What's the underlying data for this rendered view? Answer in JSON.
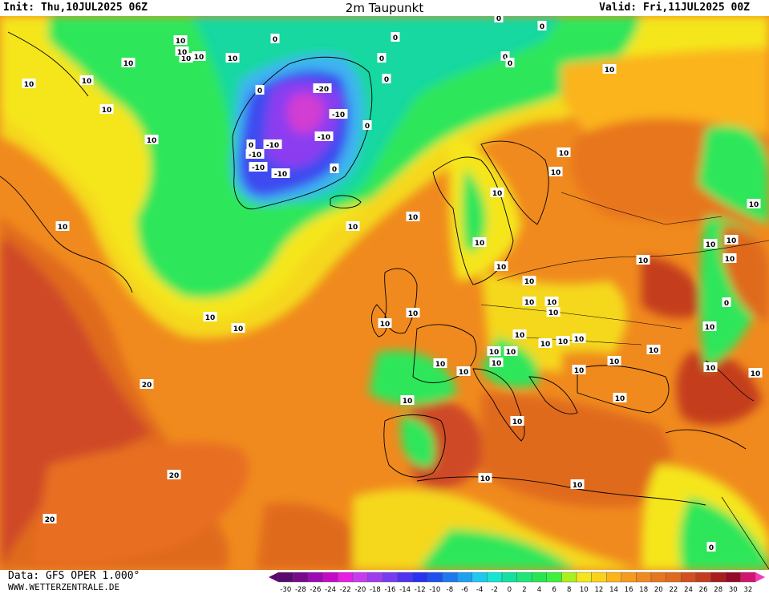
{
  "header": {
    "init": "Init: Thu,10JUL2025 06Z",
    "title": "2m Taupunkt",
    "valid": "Valid: Fri,11JUL2025 00Z"
  },
  "footer": {
    "data_source": "Data: GFS OPER 1.000°",
    "website": "WWW.WETTERZENTRALE.DE"
  },
  "colors": {
    "ocean_orange": "#f08a1e",
    "deep_orange": "#e06a1e",
    "red_orange": "#cf4a26",
    "yellow": "#f5e61a",
    "gold": "#fbc21a",
    "green": "#2ee65a",
    "bright_green": "#3cf03c",
    "teal": "#14e0a0",
    "blue": "#3c4cf0",
    "purple": "#8c3cf0",
    "magenta": "#d23cd2",
    "coast": "#000000"
  },
  "legend": {
    "labels": [
      "-30",
      "-28",
      "-26",
      "-24",
      "-22",
      "-20",
      "-18",
      "-16",
      "-14",
      "-12",
      "-10",
      "-8",
      "-6",
      "-4",
      "-2",
      "0",
      "2",
      "4",
      "6",
      "8",
      "10",
      "12",
      "14",
      "16",
      "18",
      "20",
      "22",
      "24",
      "26",
      "28",
      "30",
      "32"
    ],
    "colors": [
      "#5a0a6e",
      "#780a8c",
      "#9b0ab4",
      "#c40ac8",
      "#e61ee6",
      "#c83cf0",
      "#a03cf0",
      "#783cf0",
      "#5032f0",
      "#2832f0",
      "#1e50f0",
      "#1e78f0",
      "#1ea0f0",
      "#1ec8f0",
      "#14e6d2",
      "#14e0a0",
      "#1ee678",
      "#28e650",
      "#3cf03c",
      "#aaf01e",
      "#f5e61a",
      "#fbd21a",
      "#fbb41a",
      "#f79a1e",
      "#f08a1e",
      "#e8761e",
      "#e06a1e",
      "#d2501e",
      "#c43c1e",
      "#aa1e1e",
      "#960a28",
      "#d2146e"
    ]
  },
  "contour_labels": [
    {
      "text": "10"
    },
    {
      "text": "10"
    },
    {
      "text": "10"
    },
    {
      "text": "10"
    },
    {
      "text": "0"
    },
    {
      "text": "10"
    },
    {
      "text": "0"
    },
    {
      "text": "0"
    },
    {
      "text": "0"
    },
    {
      "text": "0"
    },
    {
      "text": "10"
    },
    {
      "text": "0"
    },
    {
      "text": "0"
    },
    {
      "text": "0"
    },
    {
      "text": "10"
    },
    {
      "text": "10"
    },
    {
      "text": "10"
    },
    {
      "text": "10"
    },
    {
      "text": "10"
    },
    {
      "text": "0"
    },
    {
      "text": "-20"
    },
    {
      "text": "-10"
    },
    {
      "text": "-10"
    },
    {
      "text": "-10"
    },
    {
      "text": "-10"
    },
    {
      "text": "-10"
    },
    {
      "text": "-10"
    },
    {
      "text": "0"
    },
    {
      "text": "0"
    },
    {
      "text": "0"
    },
    {
      "text": "10"
    },
    {
      "text": "10"
    },
    {
      "text": "10"
    },
    {
      "text": "10"
    },
    {
      "text": "10"
    },
    {
      "text": "10"
    },
    {
      "text": "10"
    },
    {
      "text": "10"
    },
    {
      "text": "10"
    },
    {
      "text": "10"
    },
    {
      "text": "10"
    },
    {
      "text": "10"
    },
    {
      "text": "10"
    },
    {
      "text": "10"
    },
    {
      "text": "10"
    },
    {
      "text": "10"
    },
    {
      "text": "10"
    },
    {
      "text": "10"
    },
    {
      "text": "10"
    },
    {
      "text": "10"
    },
    {
      "text": "10"
    },
    {
      "text": "10"
    },
    {
      "text": "10"
    },
    {
      "text": "10"
    },
    {
      "text": "10"
    },
    {
      "text": "10"
    },
    {
      "text": "10"
    },
    {
      "text": "10"
    },
    {
      "text": "0"
    },
    {
      "text": "10"
    },
    {
      "text": "10"
    },
    {
      "text": "10"
    },
    {
      "text": "10"
    },
    {
      "text": "10"
    },
    {
      "text": "10"
    },
    {
      "text": "20"
    },
    {
      "text": "20"
    },
    {
      "text": "20"
    },
    {
      "text": "10"
    },
    {
      "text": "10"
    },
    {
      "text": "10"
    },
    {
      "text": "10"
    },
    {
      "text": "0"
    },
    {
      "text": "10"
    },
    {
      "text": "10"
    },
    {
      "text": "10"
    }
  ]
}
